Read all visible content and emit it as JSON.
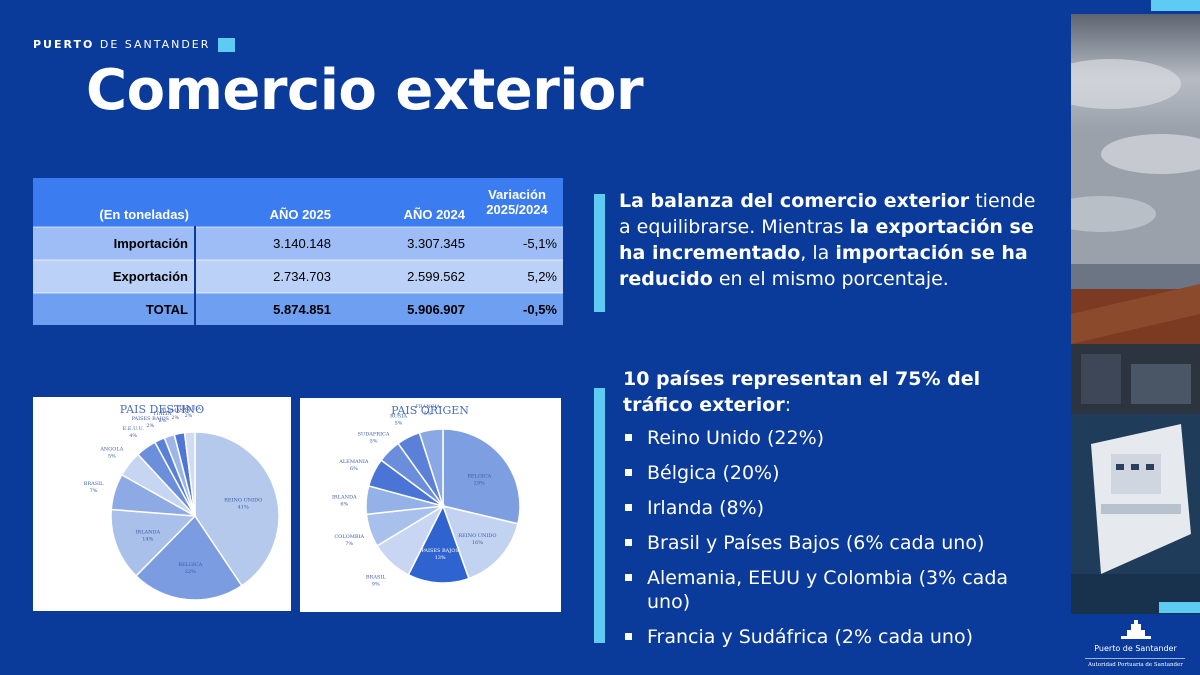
{
  "header": {
    "brand_bold": "PUERTO",
    "brand_rest": "DE SANTANDER",
    "title": "Comercio exterior"
  },
  "table": {
    "headers": [
      "(En toneladas)",
      "AÑO 2025",
      "AÑO 2024",
      "Variación 2025/2024"
    ],
    "rows": [
      {
        "label": "Importación",
        "y2025": "3.140.148",
        "y2024": "3.307.345",
        "var": "-5,1%"
      },
      {
        "label": "Exportación",
        "y2025": "2.734.703",
        "y2024": "2.599.562",
        "var": "5,2%"
      },
      {
        "label": "TOTAL",
        "y2025": "5.874.851",
        "y2024": "5.906.907",
        "var": "-0,5%"
      }
    ]
  },
  "text1": {
    "p1": "La balanza del comercio exterior",
    "p2": " tiende a equilibrarse. Mientras ",
    "p3": "la exportación se ha incrementado",
    "p4": ", la ",
    "p5": "importación se ha reducido",
    "p6": " en el mismo porcentaje."
  },
  "text2": {
    "heading": "10 países representan el 75% del tráfico exterior",
    "colon": ":"
  },
  "countries": [
    "Reino Unido (22%)",
    "Bélgica (20%)",
    "Irlanda (8%)",
    "Brasil y Países Bajos (6% cada uno)",
    "Alemania, EEUU y Colombia (3% cada uno)",
    "Francia y Sudáfrica (2% cada uno)"
  ],
  "logo": {
    "name": "Puerto de Santander",
    "sub": "Autoridad Portuaria de Santander"
  },
  "chart_data": [
    {
      "type": "pie",
      "title": "PAIS DESTINO",
      "slices": [
        {
          "name": "REINO UNIDO",
          "label": "41%",
          "value": 41,
          "color": "#b4c9ec"
        },
        {
          "name": "BELGICA",
          "label": "22%",
          "value": 22,
          "color": "#7b9ce0"
        },
        {
          "name": "IRLANDA",
          "label": "14%",
          "value": 14,
          "color": "#a8c0ea"
        },
        {
          "name": "BRASIL",
          "label": "7%",
          "value": 7,
          "color": "#8eaae4"
        },
        {
          "name": "ANGOLA",
          "label": "5%",
          "value": 5,
          "color": "#c6d6f2"
        },
        {
          "name": "E.E.U.U.",
          "label": "4%",
          "value": 4,
          "color": "#6c8fdc"
        },
        {
          "name": "PAISES BAJOS",
          "label": "2%",
          "value": 2,
          "color": "#5a80d8"
        },
        {
          "name": "ITALIA",
          "label": "2%",
          "value": 2,
          "color": "#9db6e8"
        },
        {
          "name": "ALEMANIA",
          "label": "2%",
          "value": 2,
          "color": "#4f76d4"
        },
        {
          "name": "TURQUIA",
          "label": "2%",
          "value": 2,
          "color": "#d0dcf4"
        }
      ]
    },
    {
      "type": "pie",
      "title": "PAIS ORIGEN",
      "slices": [
        {
          "name": "BELGICA",
          "label": "29%",
          "value": 29,
          "color": "#7d9fe2"
        },
        {
          "name": "REINO UNIDO",
          "label": "16%",
          "value": 16,
          "color": "#c2d3f2"
        },
        {
          "name": "PAISES BAJOS",
          "label": "13%",
          "value": 13,
          "color": "#2f63d0"
        },
        {
          "name": "BRASIL",
          "label": "9%",
          "value": 9,
          "color": "#c8d6f3"
        },
        {
          "name": "COLOMBIA",
          "label": "7%",
          "value": 7,
          "color": "#a8c0ec"
        },
        {
          "name": "IRLANDA",
          "label": "6%",
          "value": 6,
          "color": "#94b2e8"
        },
        {
          "name": "ALEMANIA",
          "label": "6%",
          "value": 6,
          "color": "#4a75d6"
        },
        {
          "name": "SUDAFRICA",
          "label": "5%",
          "value": 5,
          "color": "#6b8edc"
        },
        {
          "name": "RUSIA",
          "label": "5%",
          "value": 5,
          "color": "#5a80d8"
        },
        {
          "name": "FRANCIA",
          "label": "5%",
          "value": 5,
          "color": "#8aa8e4"
        }
      ]
    }
  ]
}
